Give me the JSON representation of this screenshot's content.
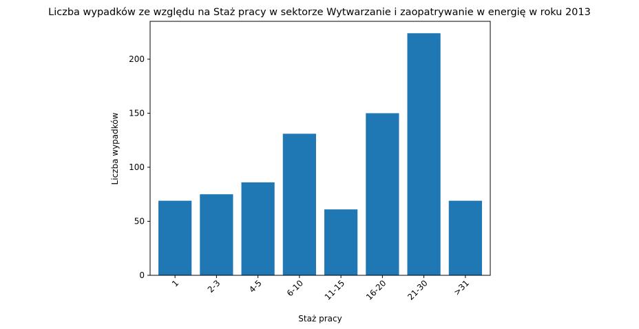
{
  "chart_data": {
    "type": "bar",
    "title": "Liczba wypadków ze względu na Staż pracy w sektorze Wytwarzanie i zaopatrywanie w energię w roku 2013",
    "xlabel": "Staż pracy",
    "ylabel": "Liczba wypadków",
    "categories": [
      "1",
      "2-3",
      "4-5",
      "6-10",
      "11-15",
      "16-20",
      "21-30",
      ">31"
    ],
    "values": [
      69,
      75,
      86,
      131,
      61,
      150,
      224,
      69
    ],
    "ylim": [
      0,
      235
    ],
    "yticks": [
      0,
      50,
      100,
      150,
      200
    ],
    "bar_color": "#1f77b4",
    "grid": false,
    "legend": "none"
  }
}
